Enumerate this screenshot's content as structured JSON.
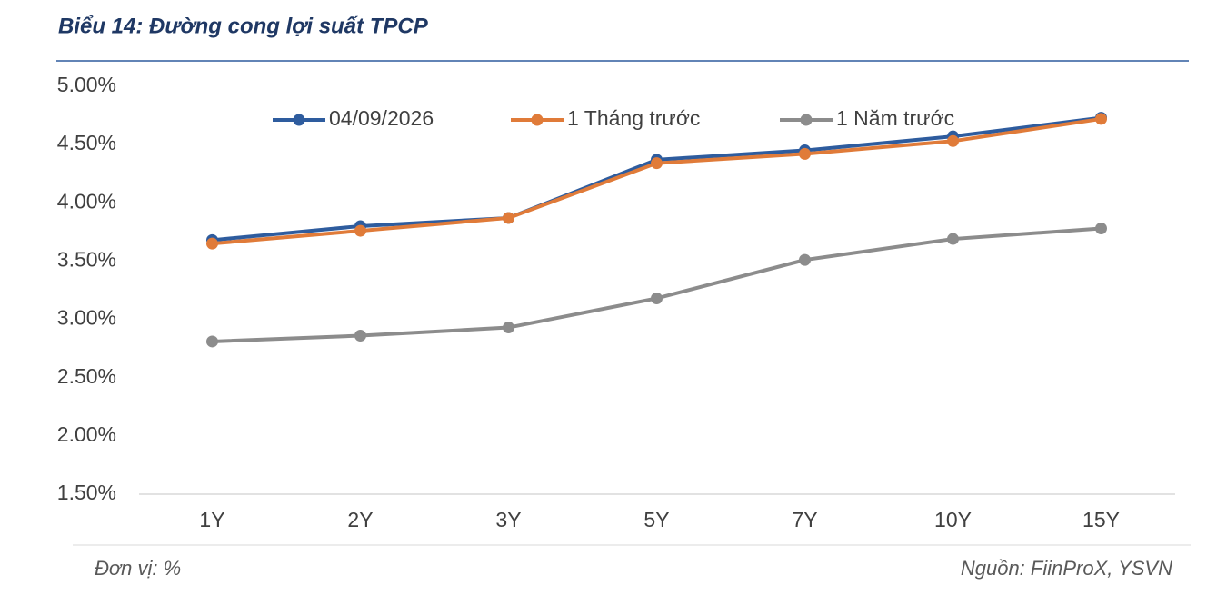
{
  "chart_data": {
    "type": "line",
    "title": "Biểu 14: Đường cong lợi suất TPCP",
    "categories": [
      "1Y",
      "2Y",
      "3Y",
      "5Y",
      "7Y",
      "10Y",
      "15Y"
    ],
    "series": [
      {
        "name": "04/09/2026",
        "color": "#2e5c9e",
        "values": [
          3.68,
          3.8,
          3.87,
          4.37,
          4.45,
          4.57,
          4.73
        ]
      },
      {
        "name": "1 Tháng trước",
        "color": "#e07b39",
        "values": [
          3.65,
          3.76,
          3.87,
          4.34,
          4.42,
          4.53,
          4.72
        ]
      },
      {
        "name": "1 Năm trước",
        "color": "#8c8c8c",
        "values": [
          2.81,
          2.86,
          2.93,
          3.18,
          3.51,
          3.69,
          3.78
        ]
      }
    ],
    "ylim": [
      1.5,
      5
    ],
    "yticks": [
      {
        "value": 1.5,
        "label": "1.50%"
      },
      {
        "value": 2,
        "label": "2.00%"
      },
      {
        "value": 2.5,
        "label": "2.50%"
      },
      {
        "value": 3,
        "label": "3.00%"
      },
      {
        "value": 3.5,
        "label": "3.50%"
      },
      {
        "value": 4,
        "label": "4.00%"
      },
      {
        "value": 4.5,
        "label": "4.50%"
      },
      {
        "value": 5,
        "label": "5.00%"
      }
    ],
    "grid": false,
    "legend": "top",
    "note": "Đơn vị: %",
    "source": "Nguồn: FiinProX, YSVN"
  }
}
